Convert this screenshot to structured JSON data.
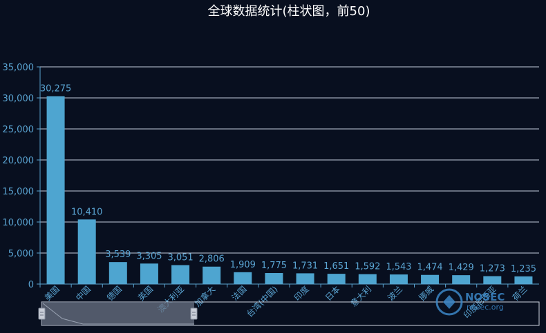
{
  "chart_data": {
    "type": "bar",
    "title": "全球数据统计(柱状图，前50)",
    "categories": [
      "美国",
      "中国",
      "德国",
      "英国",
      "澳大利亚",
      "加拿大",
      "法国",
      "台湾(中国)",
      "印度",
      "日本",
      "意大利",
      "波兰",
      "挪威",
      "",
      "印度尼西亚",
      "荷兰"
    ],
    "values": [
      30275,
      10410,
      3539,
      3305,
      3051,
      2806,
      1909,
      1775,
      1731,
      1651,
      1592,
      1543,
      1474,
      1429,
      1273,
      1235
    ],
    "data_labels": [
      "30,275",
      "10,410",
      "3,539",
      "3,305",
      "3,051",
      "2,806",
      "1,909",
      "1,775",
      "1,731",
      "1,651",
      "1,592",
      "1,543",
      "1,474",
      "1,429",
      "1,273",
      "1,235"
    ],
    "yticks": [
      "0",
      "5,000",
      "10,000",
      "15,000",
      "20,000",
      "25,000",
      "30,000",
      "35,000"
    ],
    "ylim": [
      0,
      35000
    ],
    "grid": true,
    "colors": {
      "bar": "#4ea5d0",
      "grid": "#c5cedd",
      "axis": "#5aa4d2",
      "background": "#080f1f"
    }
  },
  "watermark": {
    "text": "NOSEC",
    "sub": "nosec.org"
  }
}
